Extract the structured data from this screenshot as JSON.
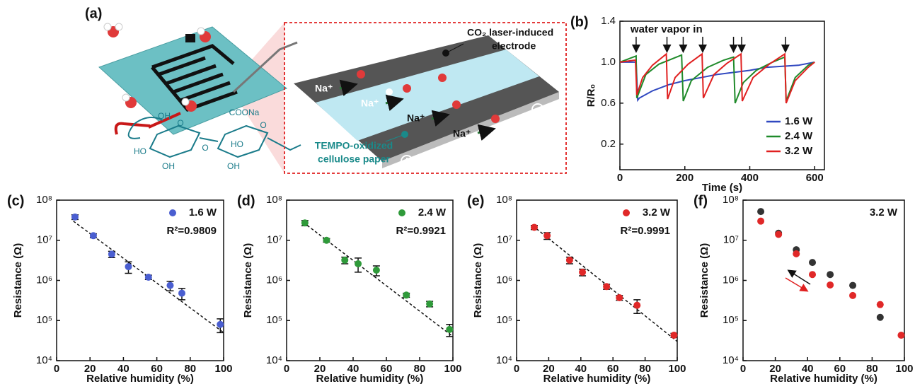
{
  "diagram": {
    "panel": "(a)",
    "electrode_label": [
      "CO₂ laser-induced",
      "electrode"
    ],
    "ion_labels": [
      "Na⁺",
      "Na⁺",
      "Na⁺",
      "Na⁺"
    ],
    "paper_label": [
      "TEMPO-oxidized",
      "cellulose paper"
    ],
    "molecule_labels": [
      "OH",
      "COONa",
      "HO",
      "O",
      "O",
      "OH",
      "HO",
      "OH",
      "O"
    ]
  },
  "chart_data": [
    {
      "type": "line",
      "panel": "(b)",
      "x_label": "Time (s)",
      "y_label": "R/R₀",
      "xlim": [
        0,
        630
      ],
      "xticks": [
        0,
        200,
        400,
        600
      ],
      "ylim": [
        -0.05,
        1.4
      ],
      "yticks": [
        0.2,
        0.6,
        {
          "value": 1.0,
          "label": "1.0"
        },
        1.4
      ],
      "annotation": {
        "text": "water vapor in",
        "x": [
          50,
          145,
          195,
          255,
          350,
          375,
          510
        ]
      },
      "series": [
        {
          "name": "1.6 W",
          "color": "#3048c0",
          "x": [
            0,
            30,
            50,
            55,
            60,
            100,
            150,
            200,
            250,
            300,
            350,
            400,
            450,
            500,
            550,
            600
          ],
          "values": [
            1.0,
            1.0,
            1.0,
            0.63,
            0.65,
            0.72,
            0.78,
            0.82,
            0.85,
            0.88,
            0.9,
            0.92,
            0.95,
            0.96,
            0.97,
            1.0
          ]
        },
        {
          "name": "2.4 W",
          "color": "#1f8a2a",
          "x": [
            0,
            50,
            52,
            80,
            120,
            190,
            195,
            220,
            270,
            320,
            350,
            355,
            380,
            420,
            470,
            508,
            512,
            540,
            580,
            600
          ],
          "values": [
            1.0,
            1.06,
            0.65,
            0.88,
            0.98,
            1.07,
            0.62,
            0.82,
            0.95,
            1.02,
            1.05,
            0.6,
            0.8,
            0.92,
            1.0,
            1.05,
            0.62,
            0.85,
            0.97,
            1.0
          ]
        },
        {
          "name": "3.2 W",
          "color": "#e02020",
          "x": [
            0,
            48,
            52,
            70,
            100,
            143,
            147,
            170,
            210,
            253,
            257,
            290,
            330,
            373,
            377,
            410,
            460,
            508,
            512,
            540,
            580,
            600
          ],
          "values": [
            1.0,
            1.02,
            0.68,
            0.85,
            0.97,
            1.08,
            0.64,
            0.85,
            0.98,
            1.08,
            0.65,
            0.88,
            0.99,
            1.08,
            0.62,
            0.85,
            0.98,
            1.08,
            0.6,
            0.82,
            0.95,
            1.0
          ]
        }
      ]
    },
    {
      "type": "scatter",
      "panel": "(c)",
      "log_y": true,
      "x_label": "Relative humidity (%)",
      "y_label": "Resistance (Ω)",
      "xlim": [
        0,
        100
      ],
      "xticks": [
        0,
        20,
        40,
        60,
        80,
        100
      ],
      "ylim": [
        10000,
        100000000
      ],
      "yticks": [
        {
          "value": 10000,
          "label": "10⁴"
        },
        {
          "value": 100000,
          "label": "10⁵"
        },
        {
          "value": 1000000,
          "label": "10⁶"
        },
        {
          "value": 10000000,
          "label": "10⁷"
        },
        {
          "value": 100000000,
          "label": "10⁸"
        }
      ],
      "r2": "R²=0.9809",
      "fit": {
        "x": [
          10,
          100
        ],
        "values": [
          30000000,
          50000
        ]
      },
      "series": [
        {
          "name": "1.6 W",
          "color": "#4a5ed0",
          "x": [
            11,
            22,
            33,
            43,
            55,
            68,
            75,
            98
          ],
          "values": [
            38000000,
            13000000,
            4500000,
            2200000,
            1200000,
            750000,
            480000,
            80000
          ],
          "errors": [
            5000000,
            1500000,
            800000,
            700000,
            150000,
            200000,
            150000,
            30000
          ]
        }
      ]
    },
    {
      "type": "scatter",
      "panel": "(d)",
      "log_y": true,
      "x_label": "Relative humidity (%)",
      "y_label": "Resistance (Ω)",
      "xlim": [
        0,
        100
      ],
      "xticks": [
        0,
        20,
        40,
        60,
        80,
        100
      ],
      "ylim": [
        10000,
        100000000
      ],
      "yticks": [
        {
          "value": 10000,
          "label": "10⁴"
        },
        {
          "value": 100000,
          "label": "10⁵"
        },
        {
          "value": 1000000,
          "label": "10⁶"
        },
        {
          "value": 10000000,
          "label": "10⁷"
        },
        {
          "value": 100000000,
          "label": "10⁸"
        }
      ],
      "r2": "R²=0.9921",
      "fit": {
        "x": [
          10,
          100
        ],
        "values": [
          28000000,
          40000
        ]
      },
      "series": [
        {
          "name": "2.4 W",
          "color": "#2f9a3a",
          "x": [
            11,
            24,
            35,
            43,
            54,
            72,
            86,
            98
          ],
          "values": [
            27000000,
            10000000,
            3200000,
            2600000,
            1800000,
            430000,
            260000,
            60000
          ],
          "errors": [
            4000000,
            1000000,
            600000,
            1000000,
            500000,
            50000,
            40000,
            20000
          ]
        }
      ]
    },
    {
      "type": "scatter",
      "panel": "(e)",
      "log_y": true,
      "x_label": "Relative humidity (%)",
      "y_label": "Resistance (Ω)",
      "xlim": [
        0,
        100
      ],
      "xticks": [
        0,
        20,
        40,
        60,
        80,
        100
      ],
      "ylim": [
        10000,
        100000000
      ],
      "yticks": [
        {
          "value": 10000,
          "label": "10⁴"
        },
        {
          "value": 100000,
          "label": "10⁵"
        },
        {
          "value": 1000000,
          "label": "10⁶"
        },
        {
          "value": 10000000,
          "label": "10⁷"
        },
        {
          "value": 100000000,
          "label": "10⁸"
        }
      ],
      "r2": "R²=0.9991",
      "fit": {
        "x": [
          10,
          100
        ],
        "values": [
          23000000,
          30000
        ]
      },
      "series": [
        {
          "name": "3.2 W",
          "color": "#e02828",
          "x": [
            11,
            19,
            33,
            41,
            56,
            64,
            75,
            98
          ],
          "values": [
            21000000,
            13000000,
            3200000,
            1600000,
            700000,
            370000,
            240000,
            43000
          ],
          "errors": [
            2500000,
            2500000,
            600000,
            300000,
            100000,
            50000,
            90000,
            5000
          ]
        }
      ]
    },
    {
      "type": "scatter",
      "panel": "(f)",
      "log_y": true,
      "x_label": "Relative humidity (%)",
      "y_label": "Resistance (Ω)",
      "xlim": [
        0,
        100
      ],
      "xticks": [
        0,
        20,
        40,
        60,
        80,
        100
      ],
      "ylim": [
        10000,
        100000000
      ],
      "yticks": [
        {
          "value": 10000,
          "label": "10⁴"
        },
        {
          "value": 100000,
          "label": "10⁵"
        },
        {
          "value": 1000000,
          "label": "10⁶"
        },
        {
          "value": 10000000,
          "label": "10⁷"
        },
        {
          "value": 100000000,
          "label": "10⁸"
        }
      ],
      "legend_text": "3.2 W",
      "series": [
        {
          "color": "#333333",
          "x": [
            11,
            22,
            33,
            43,
            54,
            68,
            85
          ],
          "values": [
            52000000,
            15000000,
            5800000,
            2800000,
            1400000,
            750000,
            120000
          ]
        },
        {
          "color": "#e02828",
          "x": [
            11,
            22,
            33,
            43,
            54,
            68,
            85,
            98
          ],
          "values": [
            30000000,
            14000000,
            4600000,
            1400000,
            770000,
            420000,
            250000,
            43000
          ]
        }
      ]
    }
  ]
}
